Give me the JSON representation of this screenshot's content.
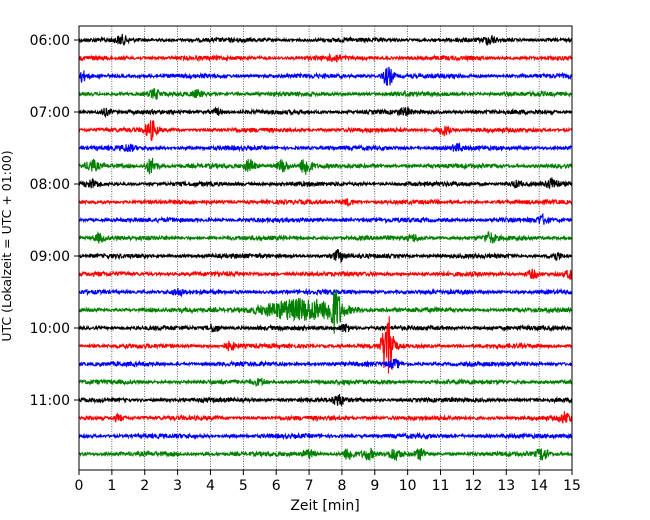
{
  "chart_data": {
    "type": "line",
    "title": "",
    "xlabel": "Zeit  [min]",
    "ylabel": "UTC (Lokalzeit = UTC + 01:00)",
    "xlim": [
      0,
      15
    ],
    "x_ticks": [
      "0",
      "1",
      "2",
      "3",
      "4",
      "5",
      "6",
      "7",
      "8",
      "9",
      "10",
      "11",
      "12",
      "13",
      "14",
      "15"
    ],
    "y_ticks": [
      "06:00",
      "07:00",
      "08:00",
      "09:00",
      "10:00",
      "11:00"
    ],
    "grid": "vertical dotted",
    "legend": "none",
    "trace_interval_min": 15,
    "trace_duration_min": 15,
    "trace_start": "06:00",
    "colors": [
      "#000000",
      "#ff0000",
      "#0000ff",
      "#008000"
    ],
    "traces": [
      {
        "start": "06:00",
        "color": "#000000",
        "events": [
          {
            "t": 1.3,
            "amp": 4
          },
          {
            "t": 12.5,
            "amp": 4
          }
        ]
      },
      {
        "start": "06:15",
        "color": "#ff0000",
        "events": [
          {
            "t": 7.8,
            "amp": 3
          }
        ]
      },
      {
        "start": "06:30",
        "color": "#0000ff",
        "events": [
          {
            "t": 0.05,
            "amp": 5
          },
          {
            "t": 9.4,
            "amp": 9
          }
        ]
      },
      {
        "start": "06:45",
        "color": "#008000",
        "events": [
          {
            "t": 2.3,
            "amp": 4
          },
          {
            "t": 3.6,
            "amp": 3
          }
        ]
      },
      {
        "start": "07:00",
        "color": "#000000",
        "events": [
          {
            "t": 0.8,
            "amp": 3
          },
          {
            "t": 4.2,
            "amp": 3
          },
          {
            "t": 9.9,
            "amp": 3
          }
        ]
      },
      {
        "start": "07:15",
        "color": "#ff0000",
        "events": [
          {
            "t": 2.2,
            "amp": 9
          },
          {
            "t": 11.1,
            "amp": 5
          }
        ]
      },
      {
        "start": "07:30",
        "color": "#0000ff",
        "events": [
          {
            "t": 1.5,
            "amp": 3
          },
          {
            "t": 11.5,
            "amp": 3
          }
        ]
      },
      {
        "start": "07:45",
        "color": "#008000",
        "events": [
          {
            "t": 0.4,
            "amp": 5
          },
          {
            "t": 2.2,
            "amp": 8
          },
          {
            "t": 5.2,
            "amp": 6
          },
          {
            "t": 6.2,
            "amp": 6
          },
          {
            "t": 6.9,
            "amp": 9
          }
        ]
      },
      {
        "start": "08:00",
        "color": "#000000",
        "events": [
          {
            "t": 0.4,
            "amp": 4
          },
          {
            "t": 13.3,
            "amp": 3
          },
          {
            "t": 14.4,
            "amp": 5
          }
        ]
      },
      {
        "start": "08:15",
        "color": "#ff0000",
        "events": [
          {
            "t": 8.2,
            "amp": 3
          }
        ]
      },
      {
        "start": "08:30",
        "color": "#0000ff",
        "events": [
          {
            "t": 14.1,
            "amp": 4
          }
        ]
      },
      {
        "start": "08:45",
        "color": "#008000",
        "events": [
          {
            "t": 0.6,
            "amp": 4
          },
          {
            "t": 10.2,
            "amp": 3
          },
          {
            "t": 12.5,
            "amp": 5
          }
        ]
      },
      {
        "start": "09:00",
        "color": "#000000",
        "events": [
          {
            "t": 7.9,
            "amp": 5
          },
          {
            "t": 14.5,
            "amp": 4
          }
        ]
      },
      {
        "start": "09:15",
        "color": "#ff0000",
        "events": [
          {
            "t": 13.8,
            "amp": 4
          },
          {
            "t": 15.0,
            "amp": 5
          }
        ]
      },
      {
        "start": "09:30",
        "color": "#0000ff",
        "events": [
          {
            "t": 3.0,
            "amp": 3
          }
        ]
      },
      {
        "start": "09:45",
        "color": "#008000",
        "events": [
          {
            "t": 6.8,
            "amp": 10,
            "spread": 0.9
          },
          {
            "t": 7.8,
            "amp": 17
          }
        ]
      },
      {
        "start": "10:00",
        "color": "#000000",
        "events": [
          {
            "t": 4.1,
            "amp": 4
          },
          {
            "t": 8.1,
            "amp": 4
          }
        ]
      },
      {
        "start": "10:15",
        "color": "#ff0000",
        "events": [
          {
            "t": 4.6,
            "amp": 4
          },
          {
            "t": 9.4,
            "amp": 34
          }
        ]
      },
      {
        "start": "10:30",
        "color": "#0000ff",
        "events": [
          {
            "t": 9.6,
            "amp": 4
          }
        ]
      },
      {
        "start": "10:45",
        "color": "#008000",
        "events": [
          {
            "t": 5.5,
            "amp": 3
          }
        ]
      },
      {
        "start": "11:00",
        "color": "#000000",
        "events": [
          {
            "t": 7.9,
            "amp": 5
          }
        ]
      },
      {
        "start": "11:15",
        "color": "#ff0000",
        "events": [
          {
            "t": 1.2,
            "amp": 3
          },
          {
            "t": 14.8,
            "amp": 5
          }
        ]
      },
      {
        "start": "11:30",
        "color": "#0000ff",
        "events": []
      },
      {
        "start": "11:45",
        "color": "#008000",
        "events": [
          {
            "t": 7.0,
            "amp": 4
          },
          {
            "t": 8.2,
            "amp": 6
          },
          {
            "t": 8.8,
            "amp": 5
          },
          {
            "t": 9.6,
            "amp": 5
          },
          {
            "t": 10.4,
            "amp": 5
          },
          {
            "t": 14.1,
            "amp": 6
          }
        ]
      }
    ]
  }
}
